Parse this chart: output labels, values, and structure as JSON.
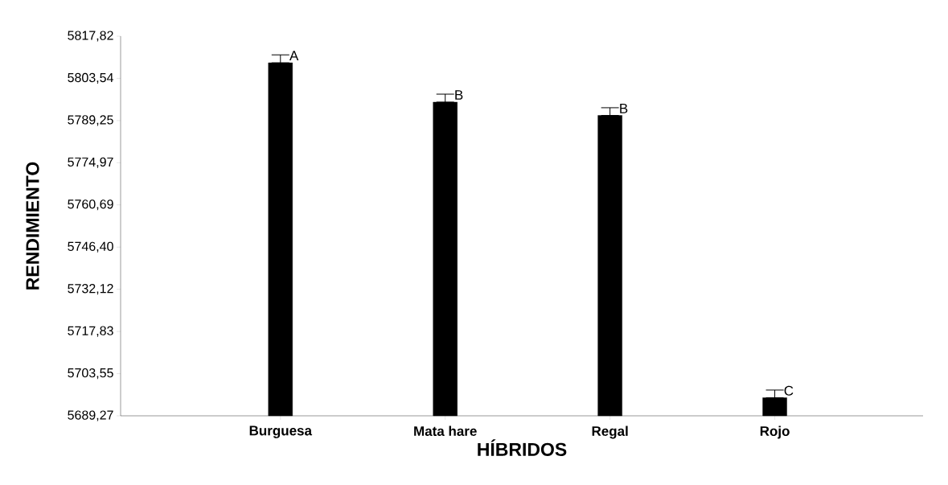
{
  "chart_data": {
    "type": "bar",
    "xlabel": "HÍBRIDOS",
    "ylabel": "RENDIMIENTO",
    "categories": [
      "Burguesa",
      "Mata hare",
      "Regal",
      "Rojo"
    ],
    "values": [
      5808.8,
      5795.5,
      5791.0,
      5695.4
    ],
    "errors": [
      [
        5808.8,
        5811.5
      ],
      [
        5795.5,
        5798.2
      ],
      [
        5791.0,
        5793.6
      ],
      [
        5695.4,
        5698.0
      ]
    ],
    "color": "#000000",
    "ylim": [
      5689.27,
      5817.82
    ],
    "yticks": [
      {
        "value": 5689.27,
        "label": "5689,27"
      },
      {
        "value": 5703.55,
        "label": "5703,55"
      },
      {
        "value": 5717.83,
        "label": "5717,83"
      },
      {
        "value": 5732.12,
        "label": "5732,12"
      },
      {
        "value": 5746.4,
        "label": "5746,40"
      },
      {
        "value": 5760.69,
        "label": "5760,69"
      },
      {
        "value": 5774.97,
        "label": "5774,97"
      },
      {
        "value": 5789.25,
        "label": "5789,25"
      },
      {
        "value": 5803.54,
        "label": "5803,54"
      },
      {
        "value": 5817.82,
        "label": "5817,82"
      }
    ],
    "annotations": [
      {
        "text": "A",
        "x": "Burguesa",
        "y": 5811.5
      },
      {
        "text": "B",
        "x": "Mata hare",
        "y": 5798.2
      },
      {
        "text": "B",
        "x": "Regal",
        "y": 5793.6
      },
      {
        "text": "C",
        "x": "Rojo",
        "y": 5698.0
      }
    ],
    "grid": false
  }
}
